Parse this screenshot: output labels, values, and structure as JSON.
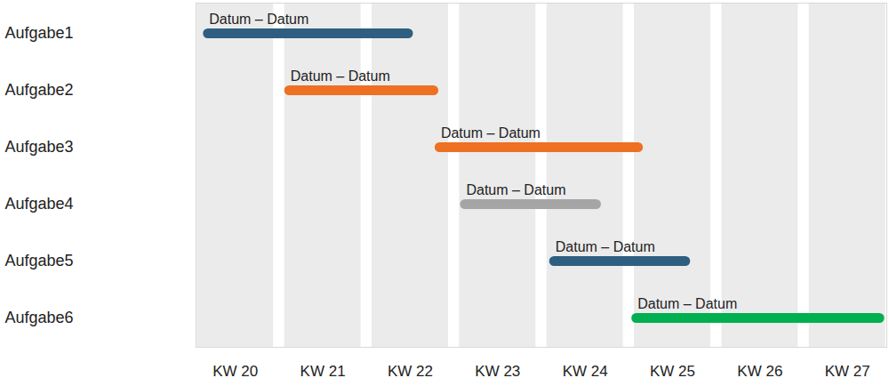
{
  "chart_data": {
    "type": "gantt",
    "categories": [
      "Aufgabe1",
      "Aufgabe2",
      "Aufgabe3",
      "Aufgabe4",
      "Aufgabe5",
      "Aufgabe6"
    ],
    "start": [
      19.69,
      20.62,
      22.34,
      22.63,
      23.65,
      24.59
    ],
    "end": [
      21.98,
      22.27,
      24.61,
      24.13,
      25.15,
      27.37
    ],
    "labels": [
      "Datum – Datum",
      "Datum – Datum",
      "Datum – Datum",
      "Datum – Datum",
      "Datum – Datum",
      "Datum – Datum"
    ],
    "colors": [
      "#2e5f80",
      "#ee7023",
      "#ee7023",
      "#a5a5a5",
      "#2e5f80",
      "#00b050"
    ],
    "xlim": [
      19.55,
      27.45
    ],
    "xticks": [
      {
        "value": 20,
        "label": "KW 20"
      },
      {
        "value": 21,
        "label": "KW 21"
      },
      {
        "value": 22,
        "label": "KW 22"
      },
      {
        "value": 23,
        "label": "KW 23"
      },
      {
        "value": 24,
        "label": "KW 24"
      },
      {
        "value": 25,
        "label": "KW 25"
      },
      {
        "value": 26,
        "label": "KW 26"
      },
      {
        "value": 27,
        "label": "KW 27"
      }
    ]
  }
}
